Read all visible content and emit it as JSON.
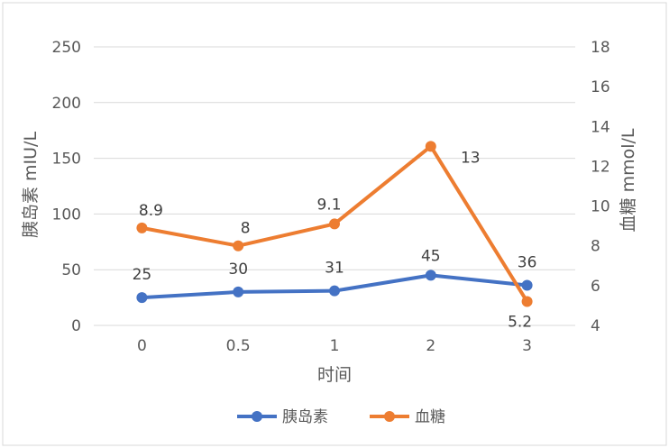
{
  "chart_data": {
    "type": "line",
    "categories": [
      "0",
      "0.5",
      "1",
      "2",
      "3"
    ],
    "xlabel": "时间",
    "series": [
      {
        "name": "胰岛素",
        "axis": "left",
        "color": "#4472C4",
        "values": [
          25,
          30,
          31,
          45,
          36
        ],
        "labels": [
          "25",
          "30",
          "31",
          "45",
          "36"
        ]
      },
      {
        "name": "血糖",
        "axis": "right",
        "color": "#ED7D31",
        "values": [
          8.9,
          8,
          9.1,
          13,
          5.2
        ],
        "labels": [
          "8.9",
          "8",
          "9.1",
          "13",
          "5.2"
        ]
      }
    ],
    "y_left": {
      "label": "胰岛素 mIU/L",
      "ylim": [
        0,
        250
      ],
      "ticks": [
        "0",
        "50",
        "100",
        "150",
        "200",
        "250"
      ]
    },
    "y_right": {
      "label": "血糖 mmol/L",
      "ylim": [
        4,
        18
      ],
      "ticks": [
        "4",
        "6",
        "8",
        "10",
        "12",
        "14",
        "16",
        "18"
      ]
    },
    "grid": true,
    "legend": "bottom"
  }
}
